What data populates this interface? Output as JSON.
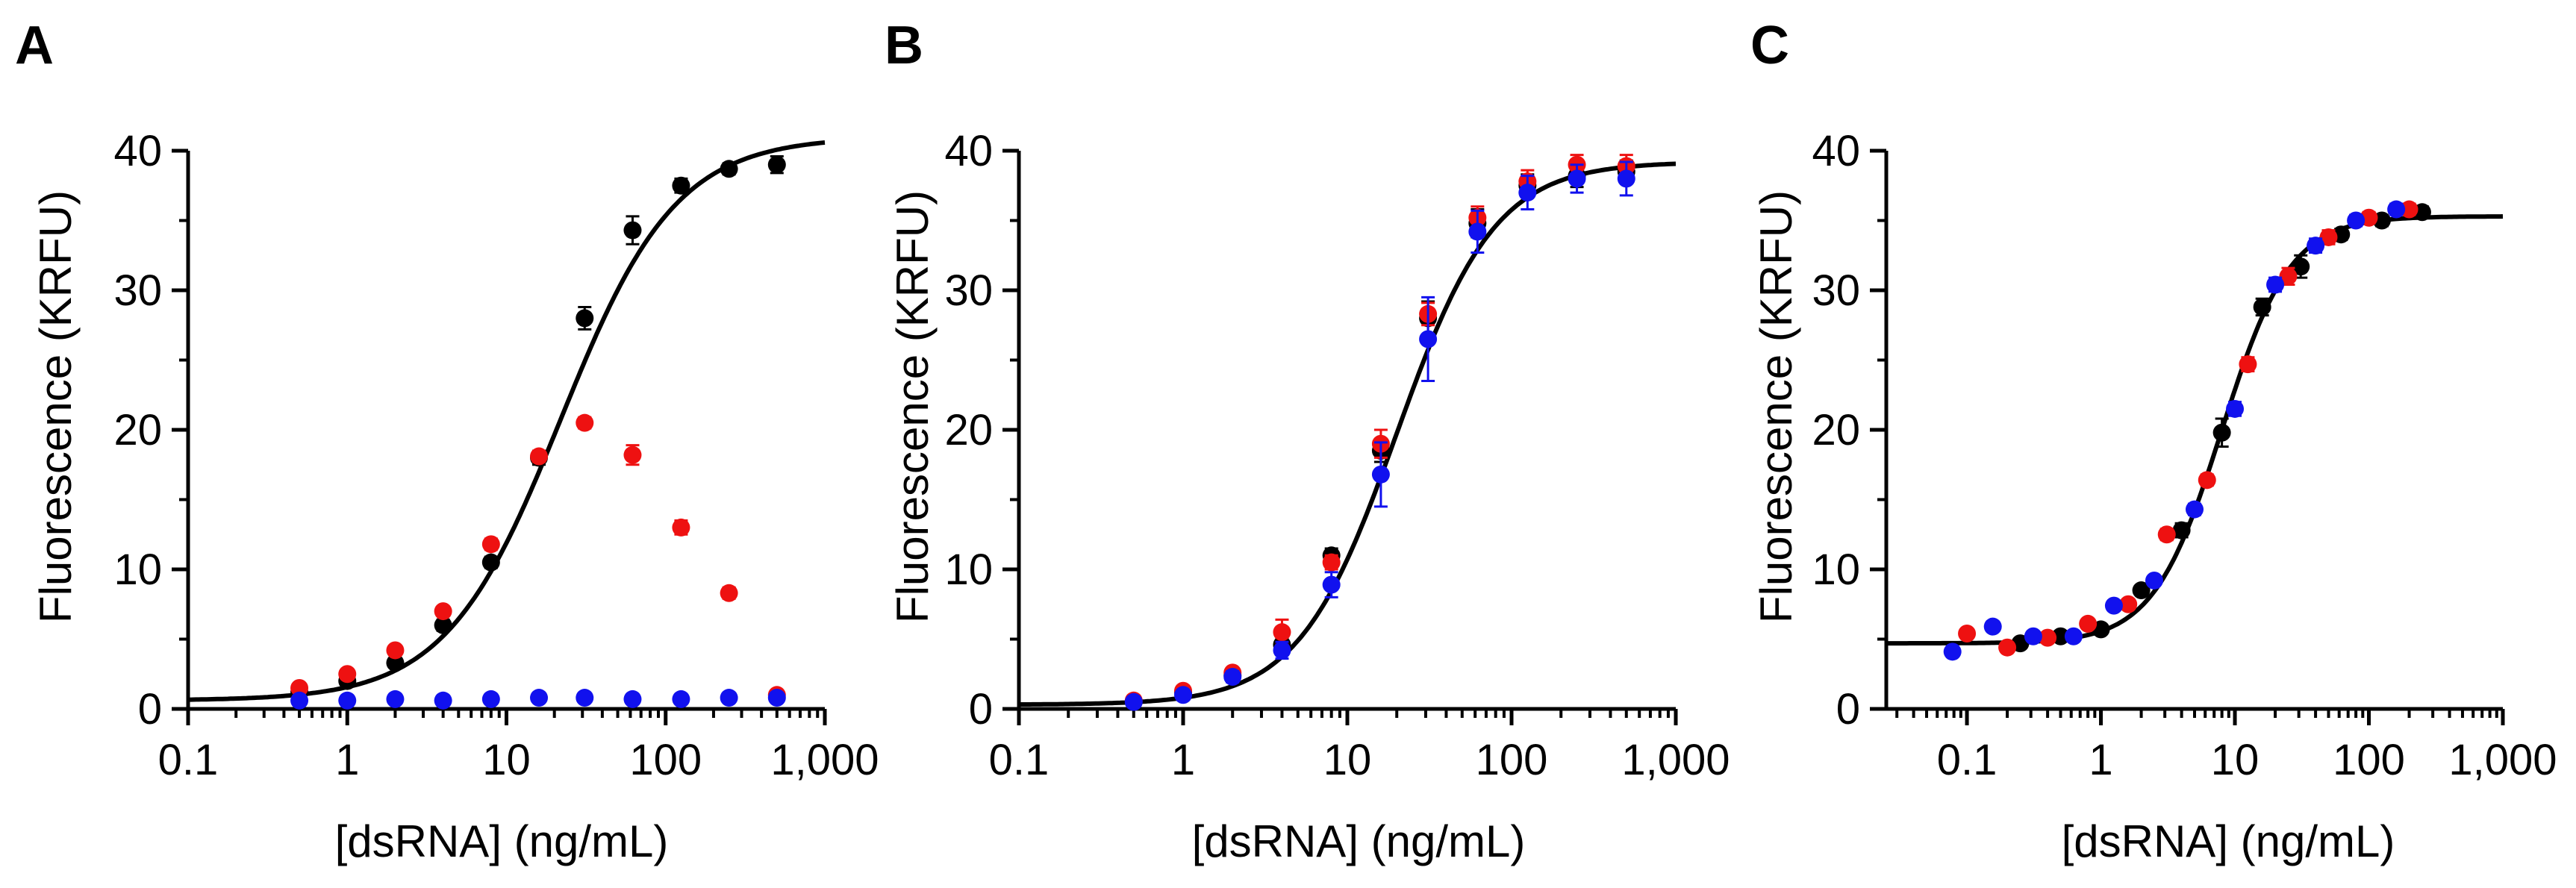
{
  "figure": {
    "panels": [
      "A",
      "B",
      "C"
    ]
  },
  "colors": {
    "black": "#000000",
    "red": "#ee1111",
    "blue": "#1111ee",
    "axis": "#000000"
  },
  "chart_data": [
    {
      "panel": "A",
      "type": "scatter",
      "xscale": "log",
      "xlim": [
        0.1,
        1000
      ],
      "ylim": [
        0,
        40
      ],
      "xticks": [
        0.1,
        1,
        10,
        100,
        1000
      ],
      "xtick_labels": [
        "0.1",
        "1",
        "10",
        "100",
        "1,000"
      ],
      "yticks": [
        0,
        10,
        20,
        30,
        40
      ],
      "ytick_labels": [
        "0",
        "10",
        "20",
        "30",
        "40"
      ],
      "xlabel": "[dsRNA] (ng/mL)",
      "ylabel": "Fluorescence (KRFU)",
      "fit": {
        "model": "4PL",
        "bottom": 0.6,
        "top": 41.0,
        "ec50": 22,
        "hill": 1.2,
        "xrange": [
          0.1,
          1000
        ]
      },
      "series": [
        {
          "name": "black",
          "color": "black",
          "x": [
            0.5,
            1,
            2,
            4,
            8,
            16,
            31,
            62,
            125,
            250,
            500
          ],
          "y": [
            1.2,
            2.0,
            3.3,
            6.0,
            10.5,
            18.0,
            28.0,
            34.3,
            37.5,
            38.7,
            39.0
          ],
          "err": [
            0.2,
            0.2,
            0.3,
            0.4,
            0.4,
            0.5,
            0.8,
            1.0,
            0.5,
            0.4,
            0.6
          ]
        },
        {
          "name": "red",
          "color": "red",
          "x": [
            0.5,
            1,
            2,
            4,
            8,
            16,
            31,
            62,
            125,
            250,
            500
          ],
          "y": [
            1.5,
            2.5,
            4.2,
            7.0,
            11.8,
            18.1,
            20.5,
            18.2,
            13.0,
            8.3,
            1.0
          ],
          "err": [
            0.2,
            0.2,
            0.3,
            0.3,
            0.4,
            0.4,
            0.4,
            0.7,
            0.5,
            0.4,
            0.2
          ]
        },
        {
          "name": "blue",
          "color": "blue",
          "x": [
            0.5,
            1,
            2,
            4,
            8,
            16,
            31,
            62,
            125,
            250,
            500
          ],
          "y": [
            0.6,
            0.6,
            0.7,
            0.6,
            0.7,
            0.8,
            0.8,
            0.7,
            0.7,
            0.8,
            0.8
          ],
          "err": [
            0.1,
            0.1,
            0.1,
            0.1,
            0.1,
            0.1,
            0.1,
            0.1,
            0.1,
            0.1,
            0.1
          ]
        }
      ]
    },
    {
      "panel": "B",
      "type": "scatter",
      "xscale": "log",
      "xlim": [
        0.1,
        1000
      ],
      "ylim": [
        0,
        40
      ],
      "xticks": [
        0.1,
        1,
        10,
        100,
        1000
      ],
      "xtick_labels": [
        "0.1",
        "1",
        "10",
        "100",
        "1,000"
      ],
      "yticks": [
        0,
        10,
        20,
        30,
        40
      ],
      "ytick_labels": [
        "0",
        "10",
        "20",
        "30",
        "40"
      ],
      "xlabel": "[dsRNA] (ng/mL)",
      "ylabel": "Fluorescence (KRFU)",
      "fit": {
        "model": "4PL",
        "bottom": 0.3,
        "top": 39.2,
        "ec50": 20,
        "hill": 1.45,
        "xrange": [
          0.1,
          1000
        ]
      },
      "series": [
        {
          "name": "black",
          "color": "black",
          "x": [
            0.5,
            1,
            2,
            4,
            8,
            16,
            31,
            62,
            125,
            250,
            500
          ],
          "y": [
            0.5,
            1.2,
            2.4,
            4.6,
            11.0,
            18.5,
            28.0,
            34.8,
            37.5,
            38.2,
            38.5
          ],
          "err": [
            0.1,
            0.2,
            0.3,
            0.4,
            0.5,
            0.8,
            1.2,
            1.0,
            0.8,
            0.8,
            0.8
          ]
        },
        {
          "name": "red",
          "color": "red",
          "x": [
            0.5,
            1,
            2,
            4,
            8,
            16,
            31,
            62,
            125,
            250,
            500
          ],
          "y": [
            0.6,
            1.3,
            2.6,
            5.5,
            10.5,
            19.0,
            28.3,
            35.2,
            37.8,
            39.0,
            38.9
          ],
          "err": [
            0.1,
            0.2,
            0.3,
            0.9,
            0.5,
            1.0,
            0.8,
            0.8,
            0.8,
            0.7,
            0.8
          ]
        },
        {
          "name": "blue",
          "color": "blue",
          "x": [
            0.5,
            1,
            2,
            4,
            8,
            16,
            31,
            62,
            125,
            250,
            500
          ],
          "y": [
            0.5,
            1.0,
            2.3,
            4.2,
            8.9,
            16.8,
            26.5,
            34.2,
            37.0,
            38.0,
            38.0
          ],
          "err": [
            0.2,
            0.3,
            0.4,
            0.6,
            0.9,
            2.3,
            3.0,
            1.5,
            1.2,
            1.0,
            1.2
          ]
        }
      ]
    },
    {
      "panel": "C",
      "type": "scatter",
      "xscale": "log",
      "xlim": [
        0.025,
        1000
      ],
      "ylim": [
        0,
        40
      ],
      "xticks": [
        0.1,
        1,
        10,
        100,
        1000
      ],
      "xtick_labels": [
        "0.1",
        "1",
        "10",
        "100",
        "1,000"
      ],
      "yticks": [
        0,
        10,
        20,
        30,
        40
      ],
      "ytick_labels": [
        "0",
        "10",
        "20",
        "30",
        "40"
      ],
      "xlabel": "[dsRNA] (ng/mL)",
      "ylabel": "Fluorescence (KRFU)",
      "fit": {
        "model": "4PL",
        "bottom": 4.7,
        "top": 35.3,
        "ec50": 8.0,
        "hill": 1.7,
        "xrange": [
          0.025,
          1000
        ]
      },
      "series": [
        {
          "name": "black",
          "color": "black",
          "x": [
            0.25,
            0.5,
            1,
            2,
            4,
            8,
            16,
            31,
            62,
            125,
            250
          ],
          "y": [
            4.7,
            5.2,
            5.7,
            8.5,
            12.8,
            19.8,
            28.8,
            31.7,
            34.0,
            35.0,
            35.6
          ],
          "err": [
            0.2,
            0.2,
            0.3,
            0.3,
            0.5,
            1.0,
            0.6,
            0.8,
            0.4,
            0.4,
            0.4
          ]
        },
        {
          "name": "red",
          "color": "red",
          "x": [
            0.1,
            0.2,
            0.4,
            0.8,
            1.6,
            3.1,
            6.2,
            12.5,
            25,
            50,
            100,
            200
          ],
          "y": [
            5.4,
            4.4,
            5.1,
            6.1,
            7.5,
            12.5,
            16.4,
            24.7,
            31.0,
            33.8,
            35.2,
            35.8
          ],
          "err": [
            0.2,
            0.2,
            0.2,
            0.2,
            0.3,
            0.4,
            0.4,
            0.5,
            0.6,
            0.5,
            0.4,
            0.4
          ]
        },
        {
          "name": "blue",
          "color": "blue",
          "x": [
            0.078,
            0.156,
            0.3125,
            0.625,
            1.25,
            2.5,
            5,
            10,
            20,
            40,
            80,
            160
          ],
          "y": [
            4.1,
            5.9,
            5.2,
            5.2,
            7.4,
            9.2,
            14.3,
            21.5,
            30.4,
            33.2,
            35.0,
            35.8
          ],
          "err": [
            0.2,
            0.2,
            0.2,
            0.2,
            0.3,
            0.3,
            0.4,
            0.5,
            0.5,
            0.5,
            0.4,
            0.4
          ]
        }
      ]
    }
  ]
}
